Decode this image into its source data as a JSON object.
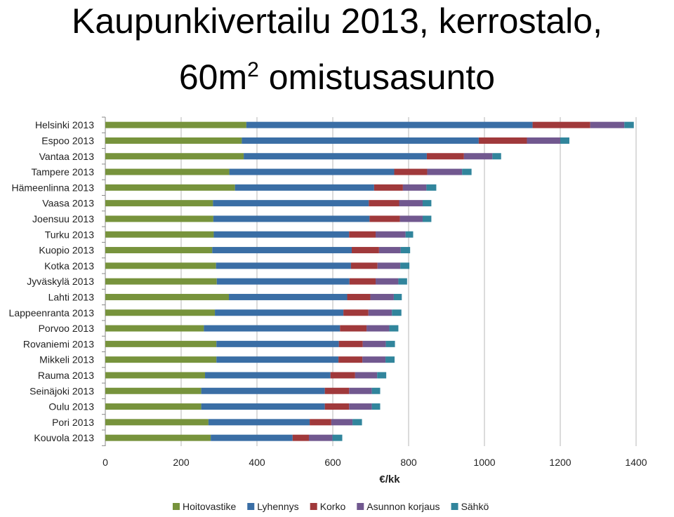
{
  "title_line1": "Kaupunkivertailu 2013, kerrostalo,",
  "title_line2_main": "60m",
  "title_line2_sup": "2",
  "title_line2_rest": " omistusasunto",
  "chart_data": {
    "type": "bar",
    "orientation": "horizontal",
    "stacked": true,
    "categories": [
      "Helsinki 2013",
      "Espoo 2013",
      "Vantaa 2013",
      "Tampere 2013",
      "Hämeenlinna 2013",
      "Vaasa 2013",
      "Joensuu 2013",
      "Turku 2013",
      "Kuopio 2013",
      "Kotka 2013",
      "Jyväskylä 2013",
      "Lahti 2013",
      "Lappeenranta 2013",
      "Porvoo 2013",
      "Rovaniemi 2013",
      "Mikkeli 2013",
      "Rauma 2013",
      "Seinäjoki 2013",
      "Oulu 2013",
      "Pori 2013",
      "Kouvola 2013"
    ],
    "series": [
      {
        "name": "Hoitovastike",
        "color": "#77933c",
        "values": [
          372,
          360,
          365,
          327,
          342,
          284,
          285,
          286,
          282,
          292,
          294,
          326,
          289,
          260,
          293,
          293,
          263,
          253,
          253,
          272,
          278
        ]
      },
      {
        "name": "Lyhennys",
        "color": "#3a6ea5",
        "values": [
          755,
          625,
          483,
          435,
          367,
          411,
          412,
          357,
          368,
          356,
          350,
          312,
          339,
          359,
          323,
          322,
          331,
          326,
          326,
          267,
          216
        ]
      },
      {
        "name": "Korko",
        "color": "#a0393b",
        "values": [
          152,
          127,
          98,
          87,
          76,
          80,
          80,
          70,
          72,
          70,
          69,
          61,
          66,
          70,
          63,
          63,
          65,
          64,
          64,
          57,
          43
        ]
      },
      {
        "name": "Asunnon korjaus",
        "color": "#71588f",
        "values": [
          90,
          88,
          75,
          92,
          62,
          62,
          60,
          79,
          57,
          60,
          60,
          62,
          62,
          60,
          61,
          61,
          58,
          60,
          60,
          56,
          62
        ]
      },
      {
        "name": "Sähkö",
        "color": "#31859c",
        "values": [
          25,
          24,
          23,
          25,
          26,
          23,
          23,
          20,
          25,
          24,
          23,
          21,
          25,
          24,
          24,
          24,
          24,
          22,
          22,
          25,
          26
        ]
      }
    ],
    "xlabel": "€/kk",
    "ylabel": "",
    "xlim": [
      0,
      1400
    ],
    "xticks": [
      0,
      200,
      400,
      600,
      800,
      1000,
      1200,
      1400
    ],
    "grid": true,
    "legend_position": "bottom"
  }
}
